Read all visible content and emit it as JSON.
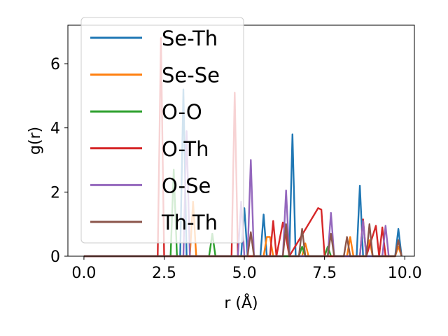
{
  "chart_data": {
    "type": "line",
    "xlabel": "r (Å)",
    "ylabel": "g(r)",
    "xlim": [
      -0.5,
      10.3
    ],
    "ylim": [
      0,
      7.2
    ],
    "xticks": [
      "0.0",
      "2.5",
      "5.0",
      "7.5",
      "10.0"
    ],
    "yticks": [
      "0",
      "2",
      "4",
      "6"
    ],
    "grid": false,
    "legend_position": "top-left",
    "series": [
      {
        "name": "Se-Th",
        "color": "#1f77b4",
        "x": [
          0,
          3.0,
          3.1,
          3.2,
          4.9,
          5.0,
          5.1,
          5.5,
          5.6,
          5.7,
          6.4,
          6.5,
          6.6,
          8.5,
          8.6,
          8.7,
          9.7,
          9.8,
          9.9
        ],
        "y": [
          0,
          0,
          5.2,
          0,
          0,
          1.5,
          0,
          0,
          1.3,
          0,
          0,
          3.8,
          0,
          0,
          2.2,
          0,
          0,
          0.85,
          0
        ]
      },
      {
        "name": "Se-Se",
        "color": "#ff7f0e",
        "x": [
          0,
          3.3,
          3.4,
          3.5,
          5.6,
          5.7,
          5.8,
          5.9,
          6.0,
          6.8,
          6.9,
          7.0,
          8.2,
          8.3,
          8.4,
          8.8,
          8.9,
          9.0,
          9.7,
          9.8,
          9.9
        ],
        "y": [
          0,
          0,
          1.7,
          0,
          0,
          0.6,
          0.6,
          0,
          0,
          0,
          0.4,
          0,
          0,
          0.6,
          0,
          0,
          0.5,
          0,
          0,
          0.3,
          0
        ]
      },
      {
        "name": "O-O",
        "color": "#2ca02c",
        "x": [
          0,
          2.7,
          2.8,
          2.9,
          3.9,
          4.0,
          4.1,
          6.7,
          6.8,
          6.9,
          7.5,
          7.6,
          7.7
        ],
        "y": [
          0,
          0,
          2.7,
          0,
          0,
          0.7,
          0,
          0,
          0.3,
          0,
          0,
          0.3,
          0
        ]
      },
      {
        "name": "O-Th",
        "color": "#d62728",
        "x": [
          0,
          2.3,
          2.4,
          2.5,
          4.6,
          4.7,
          4.8,
          5.8,
          5.9,
          6.0,
          6.2,
          6.3,
          6.4,
          7.3,
          7.4,
          7.5,
          7.6,
          8.6,
          8.7,
          8.8,
          9.1,
          9.2,
          9.3,
          9.4,
          9.5
        ],
        "y": [
          0,
          0,
          6.8,
          0,
          0,
          5.1,
          0,
          0,
          1.1,
          0,
          1.05,
          0.6,
          0,
          1.5,
          1.45,
          0,
          0,
          0,
          1.15,
          0,
          0.95,
          0,
          0.9,
          0,
          0
        ]
      },
      {
        "name": "O-Se",
        "color": "#9467bd",
        "x": [
          0,
          3.1,
          3.2,
          3.3,
          4.8,
          4.9,
          5.0,
          5.1,
          5.2,
          5.3,
          6.2,
          6.3,
          6.4,
          7.6,
          7.7,
          7.8,
          8.6,
          8.7,
          8.8,
          9.3,
          9.4,
          9.5
        ],
        "y": [
          0,
          0,
          3.9,
          0,
          0,
          1.7,
          0,
          0,
          3.0,
          0,
          0,
          2.05,
          0,
          0,
          1.35,
          0,
          0,
          1.1,
          0,
          0,
          0.95,
          0
        ]
      },
      {
        "name": "Th-Th",
        "color": "#8c564b",
        "x": [
          0,
          5.1,
          5.2,
          5.3,
          6.2,
          6.3,
          6.4,
          6.7,
          6.8,
          6.9,
          7.6,
          7.7,
          7.8,
          8.1,
          8.2,
          8.3,
          8.8,
          8.9,
          9.0,
          9.7,
          9.8,
          9.9
        ],
        "y": [
          0,
          0,
          0.75,
          0,
          0,
          1.0,
          0,
          0,
          0.85,
          0,
          0,
          0.7,
          0,
          0,
          0.6,
          0,
          0,
          1.0,
          0,
          0,
          0.5,
          0
        ]
      }
    ]
  }
}
